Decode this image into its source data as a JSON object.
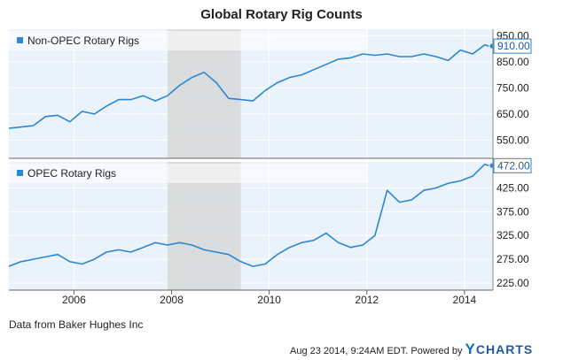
{
  "title": "Global Rotary Rig Counts",
  "source_text": "Data from Baker Hughes Inc",
  "footer": {
    "timestamp": "Aug 23 2014, 9:24AM EDT.",
    "powered_by": "Powered by",
    "brand_y": "Y",
    "brand_rest": "CHARTS"
  },
  "colors": {
    "line": "#2a87d6",
    "panel_bg": "#eaf2fb",
    "recession": "#d8d8d8",
    "grid": "#ffffff",
    "label_border": "#2a87d6"
  },
  "chart_data": [
    {
      "type": "line",
      "series": [
        {
          "name": "Non-OPEC Rotary Rigs",
          "x": [
            "2004-09",
            "2004-12",
            "2005-03",
            "2005-06",
            "2005-09",
            "2005-12",
            "2006-03",
            "2006-06",
            "2006-09",
            "2006-12",
            "2007-03",
            "2007-06",
            "2007-09",
            "2007-12",
            "2008-03",
            "2008-06",
            "2008-09",
            "2008-12",
            "2009-03",
            "2009-06",
            "2009-09",
            "2009-12",
            "2010-03",
            "2010-06",
            "2010-09",
            "2010-12",
            "2011-03",
            "2011-06",
            "2011-09",
            "2011-12",
            "2012-03",
            "2012-06",
            "2012-09",
            "2012-12",
            "2013-03",
            "2013-06",
            "2013-09",
            "2013-12",
            "2014-03",
            "2014-06",
            "2014-07"
          ],
          "values": [
            595,
            600,
            605,
            640,
            645,
            620,
            660,
            650,
            680,
            705,
            705,
            720,
            700,
            720,
            760,
            790,
            810,
            770,
            710,
            705,
            700,
            740,
            770,
            790,
            800,
            820,
            840,
            860,
            865,
            880,
            875,
            880,
            870,
            870,
            880,
            870,
            855,
            895,
            880,
            915,
            910
          ]
        }
      ],
      "last_value_label": "910.00",
      "ylim": [
        480,
        975
      ],
      "y_ticks": [
        "950.00",
        "850.00",
        "750.00",
        "650.00",
        "550.00"
      ],
      "legend": "top-left",
      "grid": true
    },
    {
      "type": "line",
      "series": [
        {
          "name": "OPEC Rotary Rigs",
          "x": [
            "2004-09",
            "2004-12",
            "2005-03",
            "2005-06",
            "2005-09",
            "2005-12",
            "2006-03",
            "2006-06",
            "2006-09",
            "2006-12",
            "2007-03",
            "2007-06",
            "2007-09",
            "2007-12",
            "2008-03",
            "2008-06",
            "2008-09",
            "2008-12",
            "2009-03",
            "2009-06",
            "2009-09",
            "2009-12",
            "2010-03",
            "2010-06",
            "2010-09",
            "2010-12",
            "2011-03",
            "2011-06",
            "2011-09",
            "2011-12",
            "2012-03",
            "2012-06",
            "2012-09",
            "2012-12",
            "2013-03",
            "2013-06",
            "2013-09",
            "2013-12",
            "2014-03",
            "2014-06",
            "2014-07"
          ],
          "values": [
            260,
            270,
            275,
            280,
            285,
            270,
            265,
            275,
            290,
            295,
            290,
            300,
            310,
            305,
            310,
            305,
            295,
            290,
            285,
            270,
            260,
            265,
            285,
            300,
            310,
            315,
            330,
            310,
            300,
            305,
            325,
            420,
            395,
            400,
            420,
            425,
            435,
            440,
            450,
            475,
            472
          ]
        }
      ],
      "last_value_label": "472.00",
      "ylim": [
        210,
        480
      ],
      "y_ticks": [
        "425.00",
        "375.00",
        "325.00",
        "275.00",
        "225.00"
      ],
      "legend": "top-left",
      "grid": true
    }
  ],
  "x_axis": {
    "ticks": [
      "2006",
      "2008",
      "2010",
      "2012",
      "2014"
    ],
    "range": [
      "2004-09",
      "2014-08"
    ]
  },
  "recession_band": [
    "2007-12",
    "2009-06"
  ]
}
